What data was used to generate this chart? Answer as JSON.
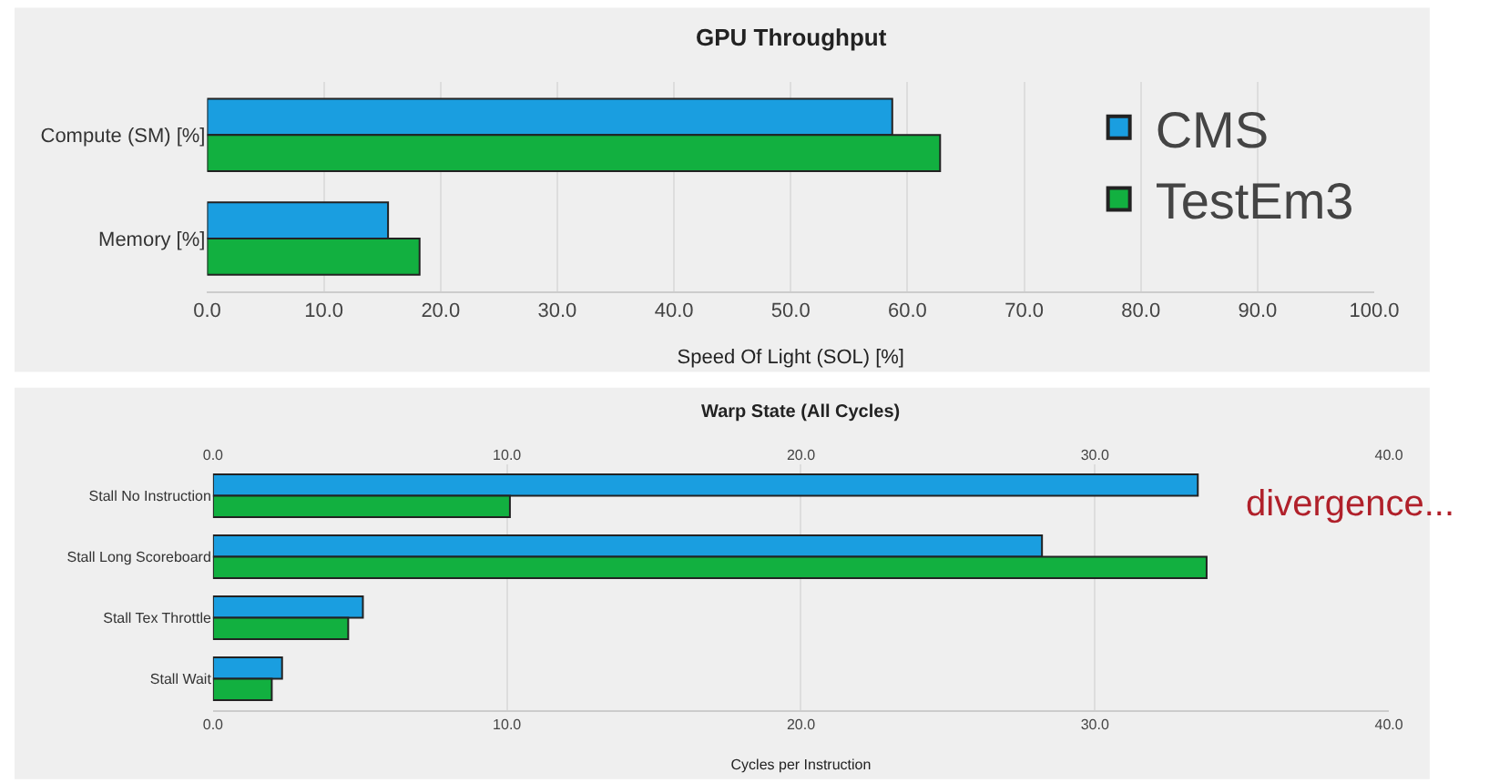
{
  "chart_data": [
    {
      "type": "bar",
      "orientation": "horizontal",
      "title": "GPU Throughput",
      "xlabel": "Speed Of Light (SOL) [%]",
      "categories": [
        "Compute (SM) [%]",
        "Memory [%]"
      ],
      "series": [
        {
          "name": "CMS",
          "color": "#1a9ee0",
          "values": [
            58.7,
            15.5
          ]
        },
        {
          "name": "TestEm3",
          "color": "#12b040",
          "values": [
            62.8,
            18.2
          ]
        }
      ],
      "xlim": [
        0,
        100
      ],
      "xticks": [
        {
          "value": 0,
          "label": "0.0"
        },
        {
          "value": 10,
          "label": "10.0"
        },
        {
          "value": 20,
          "label": "20.0"
        },
        {
          "value": 30,
          "label": "30.0"
        },
        {
          "value": 40,
          "label": "40.0"
        },
        {
          "value": 50,
          "label": "50.0"
        },
        {
          "value": 60,
          "label": "60.0"
        },
        {
          "value": 70,
          "label": "70.0"
        },
        {
          "value": 80,
          "label": "80.0"
        },
        {
          "value": 90,
          "label": "90.0"
        },
        {
          "value": 100,
          "label": "100.0"
        }
      ],
      "grid": true,
      "legend": "top right"
    },
    {
      "type": "bar",
      "orientation": "horizontal",
      "title": "Warp State (All Cycles)",
      "xlabel": "Cycles per Instruction",
      "categories": [
        "Stall No Instruction",
        "Stall Long Scoreboard",
        "Stall Tex Throttle",
        "Stall Wait"
      ],
      "series": [
        {
          "color": "#1a9ee0",
          "values": [
            33.5,
            28.2,
            5.1,
            2.35
          ]
        },
        {
          "color": "#12b040",
          "values": [
            10.1,
            33.8,
            4.6,
            2.0
          ]
        }
      ],
      "xlim": [
        0,
        40
      ],
      "xticks": [
        {
          "value": 0,
          "label": "0.0"
        },
        {
          "value": 10,
          "label": "10.0"
        },
        {
          "value": 20,
          "label": "20.0"
        },
        {
          "value": 30,
          "label": "30.0"
        },
        {
          "value": 40,
          "label": "40.0"
        }
      ],
      "x2lim": [
        0,
        40
      ],
      "x2ticks": [
        {
          "value": 0,
          "label": "0.0"
        },
        {
          "value": 10,
          "label": "10.0"
        },
        {
          "value": 20,
          "label": "20.0"
        },
        {
          "value": 30,
          "label": "30.0"
        },
        {
          "value": 40,
          "label": "40.0"
        }
      ],
      "annotations": [
        "divergence..."
      ],
      "grid": true,
      "legend": false
    }
  ]
}
